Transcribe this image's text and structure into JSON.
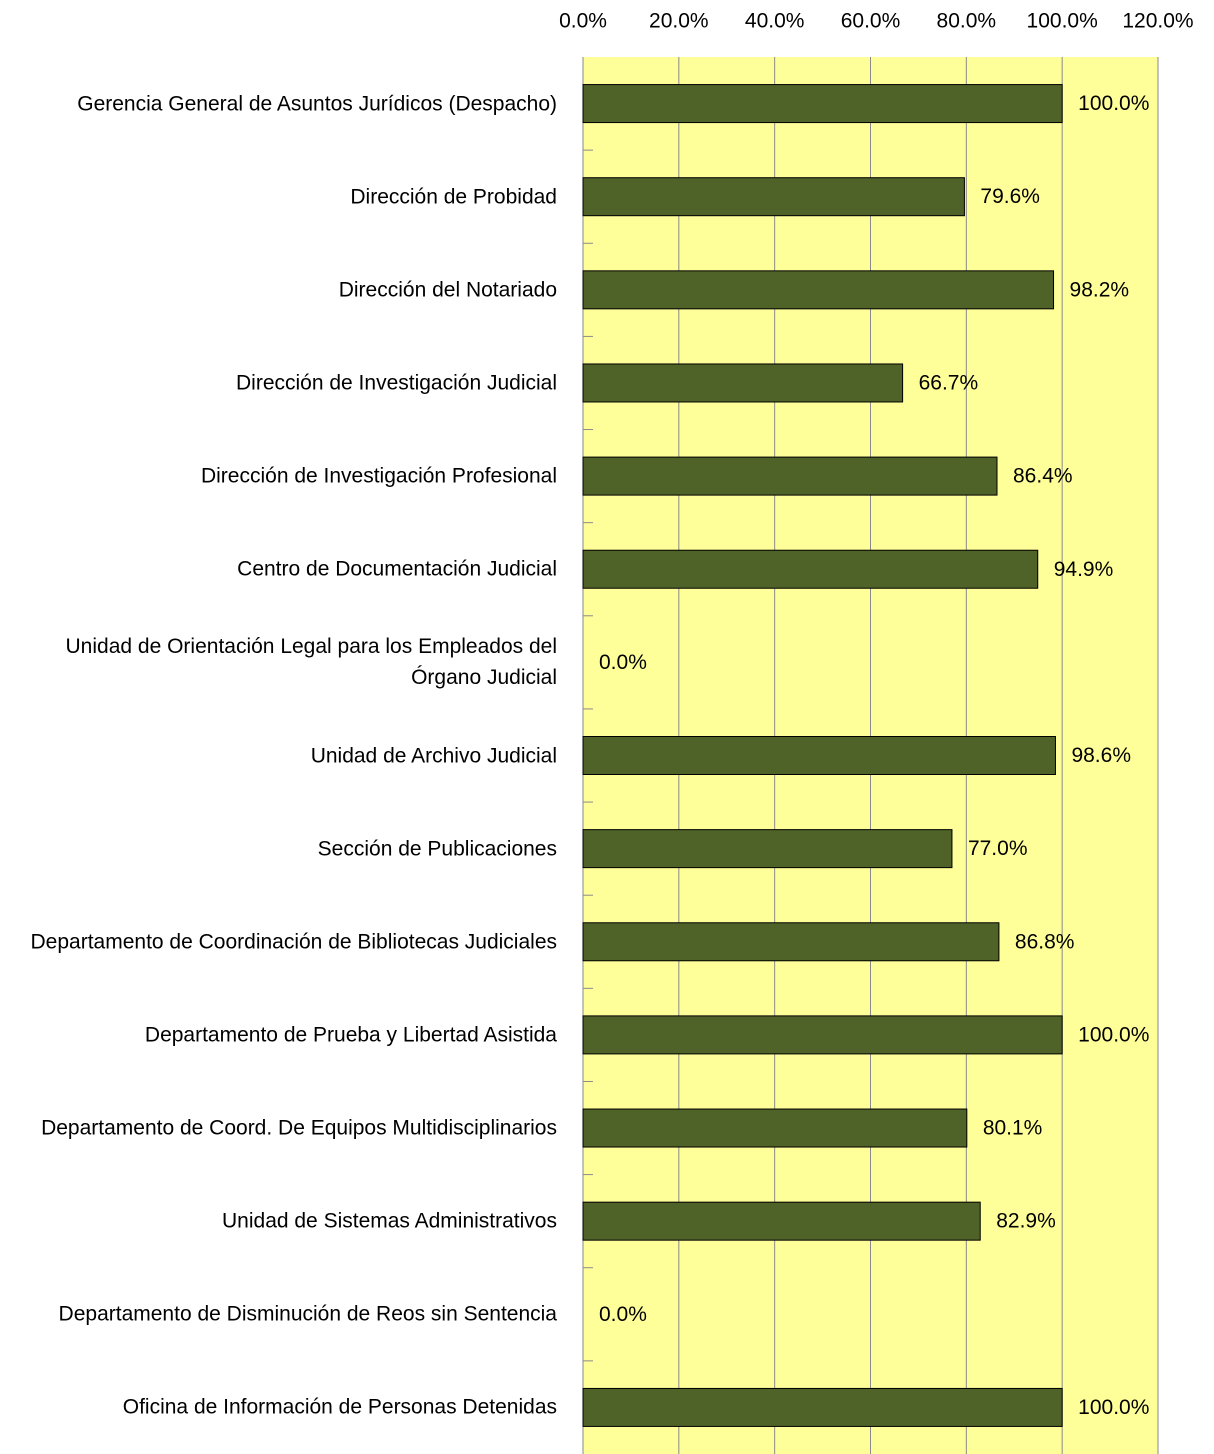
{
  "chart_data": {
    "type": "barh",
    "categories": [
      "Gerencia General de Asuntos Jurídicos (Despacho)",
      "Dirección de Probidad",
      "Dirección del Notariado",
      "Dirección de Investigación Judicial",
      "Dirección de Investigación Profesional",
      "Centro de Documentación Judicial",
      "Unidad de Orientación Legal para los Empleados del Órgano Judicial",
      "Unidad de Archivo Judicial",
      "Sección de Publicaciones",
      "Departamento de Coordinación de Bibliotecas Judiciales",
      "Departamento de Prueba y Libertad Asistida",
      "Departamento de Coord. De Equipos Multidisciplinarios",
      "Unidad de Sistemas Administrativos",
      "Departamento de Disminución de Reos sin Sentencia",
      "Oficina de Información de Personas Detenidas"
    ],
    "values": [
      100.0,
      79.6,
      98.2,
      66.7,
      86.4,
      94.9,
      0.0,
      98.6,
      77.0,
      86.8,
      100.0,
      80.1,
      82.9,
      0.0,
      100.0
    ],
    "value_labels": [
      "100.0%",
      "79.6%",
      "98.2%",
      "66.7%",
      "86.4%",
      "94.9%",
      "0.0%",
      "98.6%",
      "77.0%",
      "86.8%",
      "100.0%",
      "80.1%",
      "82.9%",
      "0.0%",
      "100.0%"
    ],
    "color": "#4f6228",
    "plot_background": "#ffff99",
    "xlim": [
      0,
      120
    ],
    "xticks": [
      {
        "value": 0,
        "label": "0.0%"
      },
      {
        "value": 20,
        "label": "20.0%"
      },
      {
        "value": 40,
        "label": "40.0%"
      },
      {
        "value": 60,
        "label": "60.0%"
      },
      {
        "value": 80,
        "label": "80.0%"
      },
      {
        "value": 100,
        "label": "100.0%"
      },
      {
        "value": 120,
        "label": "120.0%"
      }
    ],
    "grid": true
  }
}
